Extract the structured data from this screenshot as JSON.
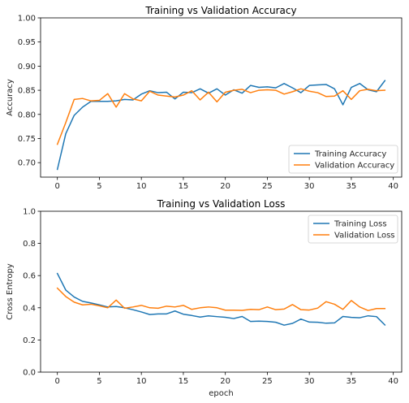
{
  "chart_data": [
    {
      "type": "line",
      "title": "Training vs Validation Accuracy",
      "xlabel": "",
      "ylabel": "Accuracy",
      "xlim": [
        -2,
        41
      ],
      "ylim": [
        0.67,
        1.0
      ],
      "xticks": [
        0,
        5,
        10,
        15,
        20,
        25,
        30,
        35,
        40
      ],
      "yticks": [
        0.7,
        0.75,
        0.8,
        0.85,
        0.9,
        0.95,
        1.0
      ],
      "legend_position": "lower-right",
      "x": [
        0,
        1,
        2,
        3,
        4,
        5,
        6,
        7,
        8,
        9,
        10,
        11,
        12,
        13,
        14,
        15,
        16,
        17,
        18,
        19,
        20,
        21,
        22,
        23,
        24,
        25,
        26,
        27,
        28,
        29,
        30,
        31,
        32,
        33,
        34,
        35,
        36,
        37,
        38,
        39
      ],
      "series": [
        {
          "name": "Training Accuracy",
          "color": "#1f77b4",
          "values": [
            0.686,
            0.76,
            0.798,
            0.815,
            0.827,
            0.827,
            0.827,
            0.828,
            0.831,
            0.83,
            0.842,
            0.849,
            0.845,
            0.846,
            0.832,
            0.846,
            0.845,
            0.853,
            0.844,
            0.853,
            0.84,
            0.851,
            0.844,
            0.86,
            0.856,
            0.857,
            0.855,
            0.864,
            0.855,
            0.845,
            0.86,
            0.861,
            0.862,
            0.853,
            0.82,
            0.856,
            0.864,
            0.851,
            0.847,
            0.87
          ]
        },
        {
          "name": "Validation Accuracy",
          "color": "#ff7f0e",
          "values": [
            0.738,
            0.783,
            0.831,
            0.833,
            0.828,
            0.829,
            0.843,
            0.815,
            0.843,
            0.832,
            0.828,
            0.848,
            0.84,
            0.838,
            0.836,
            0.84,
            0.849,
            0.83,
            0.846,
            0.826,
            0.846,
            0.85,
            0.852,
            0.845,
            0.85,
            0.851,
            0.85,
            0.842,
            0.847,
            0.853,
            0.848,
            0.845,
            0.837,
            0.838,
            0.849,
            0.831,
            0.849,
            0.852,
            0.849,
            0.85
          ]
        }
      ]
    },
    {
      "type": "line",
      "title": "Training vs Validation Loss",
      "xlabel": "epoch",
      "ylabel": "Cross Entropy",
      "xlim": [
        -2,
        41
      ],
      "ylim": [
        0.0,
        1.0
      ],
      "xticks": [
        0,
        5,
        10,
        15,
        20,
        25,
        30,
        35,
        40
      ],
      "yticks": [
        0.0,
        0.2,
        0.4,
        0.6,
        0.8,
        1.0
      ],
      "legend_position": "upper-right",
      "x": [
        0,
        1,
        2,
        3,
        4,
        5,
        6,
        7,
        8,
        9,
        10,
        11,
        12,
        13,
        14,
        15,
        16,
        17,
        18,
        19,
        20,
        21,
        22,
        23,
        24,
        25,
        26,
        27,
        28,
        29,
        30,
        31,
        32,
        33,
        34,
        35,
        36,
        37,
        38,
        39
      ],
      "series": [
        {
          "name": "Training Loss",
          "color": "#1f77b4",
          "values": [
            0.613,
            0.51,
            0.467,
            0.44,
            0.43,
            0.418,
            0.405,
            0.408,
            0.4,
            0.388,
            0.374,
            0.358,
            0.362,
            0.362,
            0.38,
            0.36,
            0.352,
            0.342,
            0.35,
            0.345,
            0.341,
            0.333,
            0.346,
            0.315,
            0.317,
            0.315,
            0.31,
            0.292,
            0.303,
            0.33,
            0.311,
            0.31,
            0.304,
            0.306,
            0.346,
            0.34,
            0.338,
            0.35,
            0.345,
            0.293
          ]
        },
        {
          "name": "Validation Loss",
          "color": "#ff7f0e",
          "values": [
            0.522,
            0.47,
            0.435,
            0.418,
            0.422,
            0.412,
            0.4,
            0.448,
            0.397,
            0.405,
            0.415,
            0.4,
            0.397,
            0.41,
            0.405,
            0.415,
            0.39,
            0.4,
            0.405,
            0.4,
            0.385,
            0.385,
            0.384,
            0.39,
            0.388,
            0.405,
            0.388,
            0.392,
            0.42,
            0.388,
            0.386,
            0.398,
            0.438,
            0.422,
            0.39,
            0.445,
            0.405,
            0.383,
            0.395,
            0.395
          ]
        }
      ]
    }
  ]
}
